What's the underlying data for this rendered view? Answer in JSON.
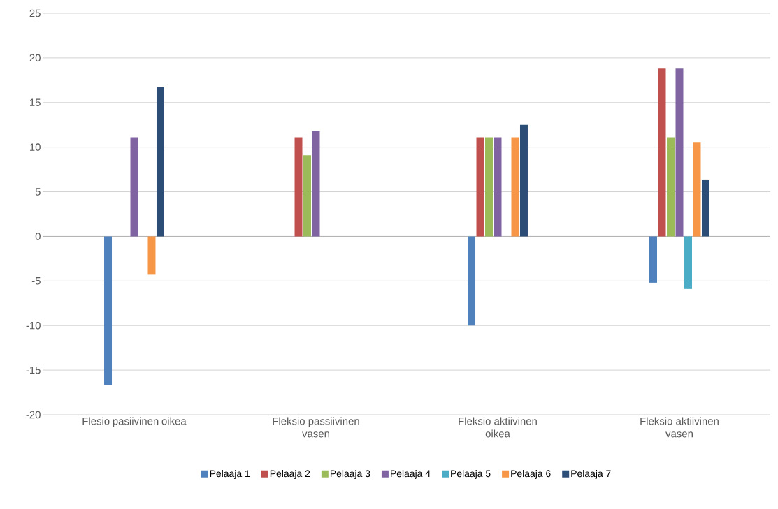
{
  "chart_data": {
    "type": "bar",
    "categories": [
      "Flesio pasiivinen oikea",
      "Fleksio passiivinen vasen",
      "Fleksio aktiivinen oikea",
      "Fleksio aktiivinen vasen"
    ],
    "series": [
      {
        "name": "Pelaaja 1",
        "color": "#4f81bd",
        "values": [
          -16.7,
          0,
          -10,
          -5.2
        ]
      },
      {
        "name": "Pelaaja 2",
        "color": "#c0504d",
        "values": [
          0,
          11.1,
          11.1,
          18.8
        ]
      },
      {
        "name": "Pelaaja 3",
        "color": "#9bbb59",
        "values": [
          0,
          9.1,
          11.1,
          11.1
        ]
      },
      {
        "name": "Pelaaja 4",
        "color": "#8064a2",
        "values": [
          11.1,
          11.8,
          11.1,
          18.8
        ]
      },
      {
        "name": "Pelaaja 5",
        "color": "#4bacc6",
        "values": [
          0,
          0,
          0,
          -5.9
        ]
      },
      {
        "name": "Pelaaja 6",
        "color": "#f79646",
        "values": [
          -4.3,
          0,
          11.1,
          10.5
        ]
      },
      {
        "name": "Pelaaja 7",
        "color": "#2c4d75",
        "values": [
          16.7,
          0,
          12.5,
          6.3
        ]
      }
    ],
    "ylim": [
      -20,
      25
    ],
    "yticks": [
      -20,
      -15,
      -10,
      -5,
      0,
      5,
      10,
      15,
      20,
      25
    ],
    "grid": "y",
    "legend": "bottom"
  }
}
